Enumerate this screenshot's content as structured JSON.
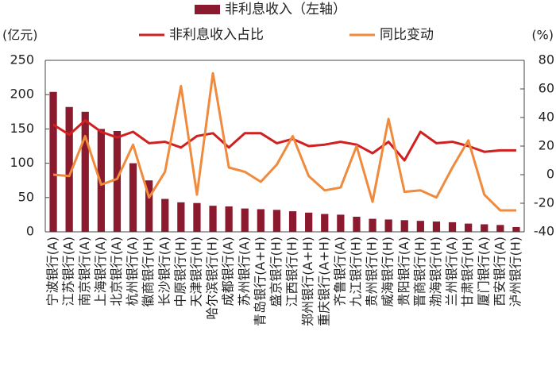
{
  "chart_data": {
    "type": "bar_line",
    "ylabel": "(亿元)",
    "y2label": "(%)",
    "categories": [
      "宁波银行(A)",
      "江苏银行(A)",
      "南京银行(A)",
      "上海银行(A)",
      "北京银行(A)",
      "杭州银行(A)",
      "徽商银行(H)",
      "长沙银行(A)",
      "中原银行(H)",
      "天津银行(H)",
      "哈尔滨银行(H)",
      "成都银行(A)",
      "苏州银行(A)",
      "青岛银行(A+H)",
      "盛京银行(H)",
      "江西银行(H)",
      "郑州银行(A+H)",
      "重庆银行(A+H)",
      "齐鲁银行(A)",
      "九江银行(H)",
      "贵州银行(H)",
      "威海银行(H)",
      "贵阳银行(A)",
      "晋商银行(H)",
      "渤海银行(H)",
      "兰州银行(A)",
      "甘肃银行(H)",
      "厦门银行(A)",
      "西安银行(A)",
      "泸州银行(H)"
    ],
    "series": [
      {
        "name": "非利息收入（左轴）",
        "type": "bar",
        "color": "#8b1a2e",
        "axis": "y",
        "values": [
          204,
          182,
          175,
          150,
          147,
          100,
          75,
          48,
          43,
          42,
          38,
          37,
          34,
          33,
          32,
          30,
          28,
          26,
          25,
          22,
          19,
          18,
          17,
          16,
          15,
          14,
          12,
          11,
          10,
          7
        ]
      },
      {
        "name": "非利息收入占比",
        "type": "line",
        "color": "#d0201f",
        "axis": "y2",
        "values": [
          35,
          28,
          38,
          30,
          26,
          30,
          22,
          23,
          19,
          27,
          29,
          19,
          29,
          29,
          22,
          25,
          20,
          21,
          23,
          21,
          15,
          23,
          10,
          30,
          22,
          23,
          20,
          16,
          17,
          17
        ]
      },
      {
        "name": "同比变动",
        "type": "line",
        "color": "#f08a3c",
        "axis": "y2",
        "values": [
          0,
          -1,
          27,
          -7,
          -3,
          21,
          -16,
          2,
          62,
          -14,
          71,
          5,
          2,
          -5,
          7,
          27,
          -1,
          -11,
          -9,
          20,
          -19,
          39,
          -12,
          -11,
          -16,
          5,
          24,
          -14,
          -25,
          -25
        ]
      }
    ],
    "ylim": [
      0,
      250
    ],
    "yticks": [
      0,
      50,
      100,
      150,
      200,
      250
    ],
    "y2lim": [
      -40,
      80
    ],
    "y2ticks": [
      -40,
      -20,
      0,
      20,
      40,
      60,
      80
    ]
  }
}
